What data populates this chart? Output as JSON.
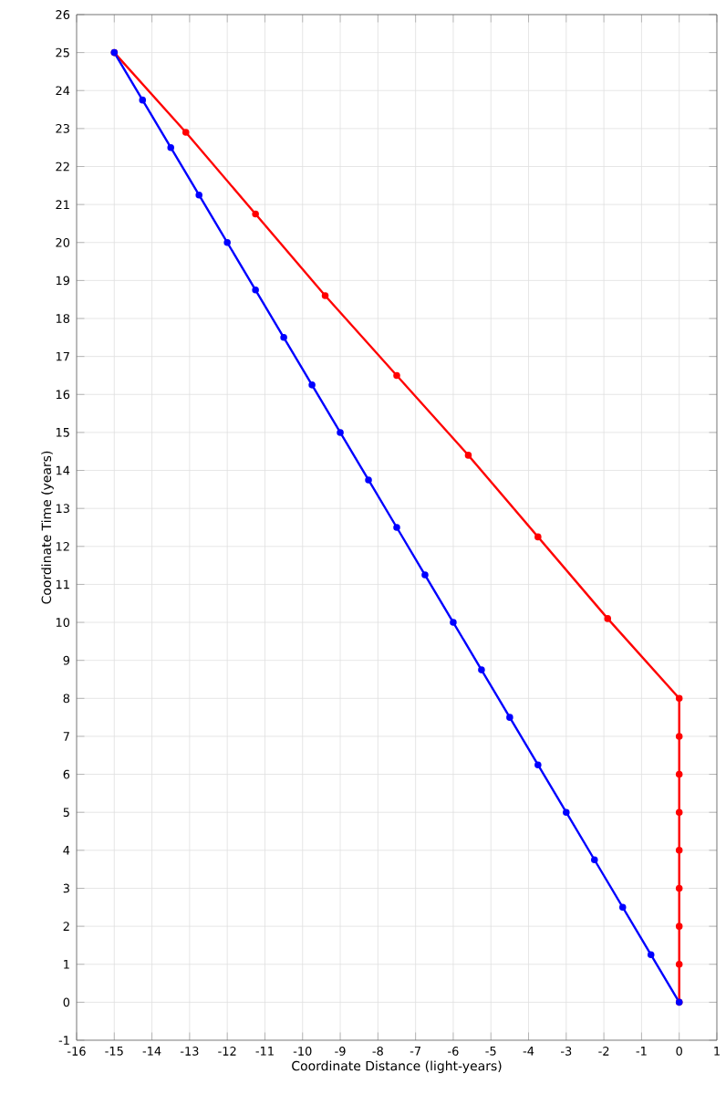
{
  "chart_data": {
    "type": "line",
    "xlabel": "Coordinate Distance (light-years)",
    "ylabel": "Coordinate Time (years)",
    "xlim": [
      -16,
      1
    ],
    "ylim": [
      -1,
      26
    ],
    "xticks": [
      -16,
      -15,
      -14,
      -13,
      -12,
      -11,
      -10,
      -9,
      -8,
      -7,
      -6,
      -5,
      -4,
      -3,
      -2,
      -1,
      0,
      1
    ],
    "yticks": [
      -1,
      0,
      1,
      2,
      3,
      4,
      5,
      6,
      7,
      8,
      9,
      10,
      11,
      12,
      13,
      14,
      15,
      16,
      17,
      18,
      19,
      20,
      21,
      22,
      23,
      24,
      25,
      26
    ],
    "grid": true,
    "marker": "circle",
    "line_style": "solid",
    "series": [
      {
        "color": "#0000ff",
        "x": [
          0,
          -0.75,
          -1.5,
          -2.25,
          -3,
          -3.75,
          -4.5,
          -5.25,
          -6,
          -6.75,
          -7.5,
          -8.25,
          -9,
          -9.75,
          -10.5,
          -11.25,
          -12,
          -12.75,
          -13.5,
          -14.25,
          -15
        ],
        "values": [
          0,
          1.25,
          2.5,
          3.75,
          5,
          6.25,
          7.5,
          8.75,
          10,
          11.25,
          12.5,
          13.75,
          15,
          16.25,
          17.5,
          18.75,
          20,
          21.25,
          22.5,
          23.75,
          25
        ]
      },
      {
        "color": "#ff0000",
        "x": [
          0,
          0,
          0,
          0,
          0,
          0,
          0,
          0,
          0,
          -1.9,
          -3.75,
          -5.6,
          -7.5,
          -9.4,
          -11.25,
          -13.1,
          -15
        ],
        "values": [
          0,
          1,
          2,
          3,
          4,
          5,
          6,
          7,
          8,
          10.1,
          12.25,
          14.4,
          16.5,
          18.6,
          20.75,
          22.9,
          25
        ]
      }
    ]
  }
}
